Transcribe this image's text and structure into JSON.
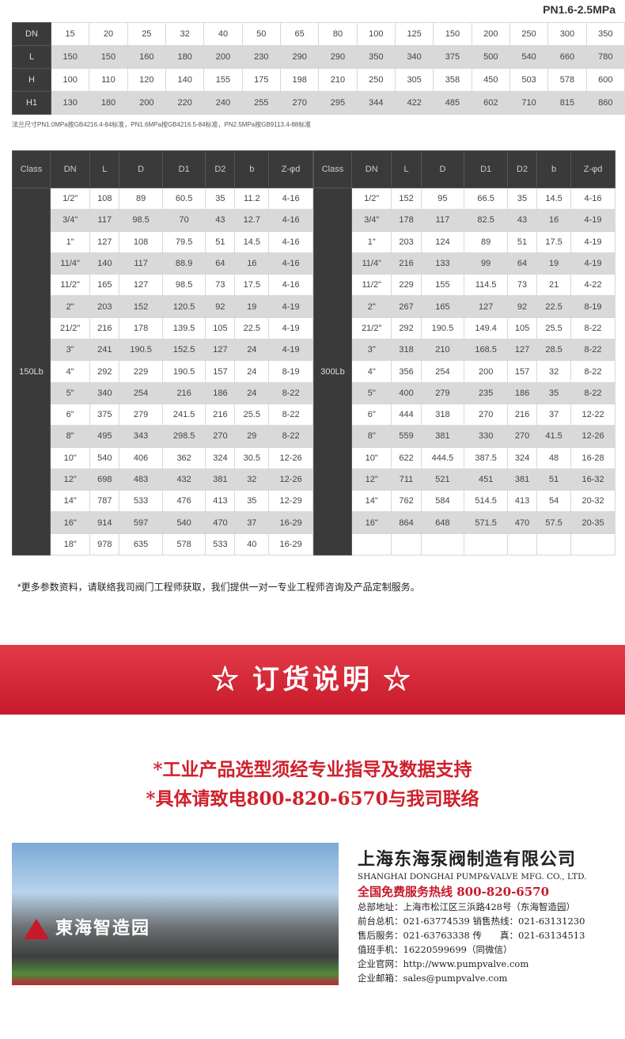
{
  "top": {
    "pressure": "PN1.6-2.5MPa",
    "rows": [
      {
        "label": "DN",
        "values": [
          "15",
          "20",
          "25",
          "32",
          "40",
          "50",
          "65",
          "80",
          "100",
          "125",
          "150",
          "200",
          "250",
          "300",
          "350"
        ]
      },
      {
        "label": "L",
        "values": [
          "150",
          "150",
          "160",
          "180",
          "200",
          "230",
          "290",
          "290",
          "350",
          "340",
          "375",
          "500",
          "540",
          "660",
          "780"
        ]
      },
      {
        "label": "H",
        "values": [
          "100",
          "110",
          "120",
          "140",
          "155",
          "175",
          "198",
          "210",
          "250",
          "305",
          "358",
          "450",
          "503",
          "578",
          "600"
        ]
      },
      {
        "label": "H1",
        "values": [
          "130",
          "180",
          "200",
          "220",
          "240",
          "255",
          "270",
          "295",
          "344",
          "422",
          "485",
          "602",
          "710",
          "815",
          "860"
        ]
      }
    ],
    "note": "法兰尺寸PN1.0MPa按GB4216.4-84标准，PN1.6MPa按GB4216.5-84标准，PN2.5MPa按GB9113.4-88标准"
  },
  "class_table": {
    "headers": [
      "Class",
      "DN",
      "L",
      "D",
      "D1",
      "D2",
      "b",
      "Z-φd"
    ],
    "left": {
      "class": "150Lb",
      "rows": [
        [
          "1/2\"",
          "108",
          "89",
          "60.5",
          "35",
          "11.2",
          "4-16"
        ],
        [
          "3/4\"",
          "117",
          "98.5",
          "70",
          "43",
          "12.7",
          "4-16"
        ],
        [
          "1\"",
          "127",
          "108",
          "79.5",
          "51",
          "14.5",
          "4-16"
        ],
        [
          "11/4\"",
          "140",
          "117",
          "88.9",
          "64",
          "16",
          "4-16"
        ],
        [
          "11/2\"",
          "165",
          "127",
          "98.5",
          "73",
          "17.5",
          "4-16"
        ],
        [
          "2\"",
          "203",
          "152",
          "120.5",
          "92",
          "19",
          "4-19"
        ],
        [
          "21/2\"",
          "216",
          "178",
          "139.5",
          "105",
          "22.5",
          "4-19"
        ],
        [
          "3\"",
          "241",
          "190.5",
          "152.5",
          "127",
          "24",
          "4-19"
        ],
        [
          "4\"",
          "292",
          "229",
          "190.5",
          "157",
          "24",
          "8-19"
        ],
        [
          "5\"",
          "340",
          "254",
          "216",
          "186",
          "24",
          "8-22"
        ],
        [
          "6\"",
          "375",
          "279",
          "241.5",
          "216",
          "25.5",
          "8-22"
        ],
        [
          "8\"",
          "495",
          "343",
          "298.5",
          "270",
          "29",
          "8-22"
        ],
        [
          "10\"",
          "540",
          "406",
          "362",
          "324",
          "30.5",
          "12-26"
        ],
        [
          "12\"",
          "698",
          "483",
          "432",
          "381",
          "32",
          "12-26"
        ],
        [
          "14\"",
          "787",
          "533",
          "476",
          "413",
          "35",
          "12-29"
        ],
        [
          "16\"",
          "914",
          "597",
          "540",
          "470",
          "37",
          "16-29"
        ],
        [
          "18\"",
          "978",
          "635",
          "578",
          "533",
          "40",
          "16-29"
        ]
      ]
    },
    "right": {
      "class": "300Lb",
      "rows": [
        [
          "1/2\"",
          "152",
          "95",
          "66.5",
          "35",
          "14.5",
          "4-16"
        ],
        [
          "3/4\"",
          "178",
          "117",
          "82.5",
          "43",
          "16",
          "4-19"
        ],
        [
          "1\"",
          "203",
          "124",
          "89",
          "51",
          "17.5",
          "4-19"
        ],
        [
          "11/4\"",
          "216",
          "133",
          "99",
          "64",
          "19",
          "4-19"
        ],
        [
          "11/2\"",
          "229",
          "155",
          "114.5",
          "73",
          "21",
          "4-22"
        ],
        [
          "2\"",
          "267",
          "165",
          "127",
          "92",
          "22.5",
          "8-19"
        ],
        [
          "21/2\"",
          "292",
          "190.5",
          "149.4",
          "105",
          "25.5",
          "8-22"
        ],
        [
          "3\"",
          "318",
          "210",
          "168.5",
          "127",
          "28.5",
          "8-22"
        ],
        [
          "4\"",
          "356",
          "254",
          "200",
          "157",
          "32",
          "8-22"
        ],
        [
          "5\"",
          "400",
          "279",
          "235",
          "186",
          "35",
          "8-22"
        ],
        [
          "6\"",
          "444",
          "318",
          "270",
          "216",
          "37",
          "12-22"
        ],
        [
          "8\"",
          "559",
          "381",
          "330",
          "270",
          "41.5",
          "12-26"
        ],
        [
          "10\"",
          "622",
          "444.5",
          "387.5",
          "324",
          "48",
          "16-28"
        ],
        [
          "12\"",
          "711",
          "521",
          "451",
          "381",
          "51",
          "16-32"
        ],
        [
          "14\"",
          "762",
          "584",
          "514.5",
          "413",
          "54",
          "20-32"
        ],
        [
          "16\"",
          "864",
          "648",
          "571.5",
          "470",
          "57.5",
          "20-35"
        ],
        [
          "",
          "",
          "",
          "",
          "",
          "",
          ""
        ]
      ]
    }
  },
  "footnote": "*更多参数资料，请联络我司阀门工程师获取，我们提供一对一专业工程师咨询及产品定制服务。",
  "banner": "☆ 订货说明 ☆",
  "notice": [
    "*工业产品选型须经专业指导及数据支持",
    "*具体请致电800-820-6570与我司联络"
  ],
  "photo": {
    "sign": "東海智造园"
  },
  "company": {
    "name": "上海东海泵阀制造有限公司",
    "name_en": "SHANGHAI DONGHAI PUMP&VALVE MFG. CO., LTD.",
    "hotline": "全国免费服务热线  800-820-6570",
    "lines": [
      "总部地址：上海市松江区三浜路428号（东海智造园）",
      "前台总机：021-63774539   销售热线：021-63131230",
      "售后服务：021-63763338   传　　真：021-63134513",
      "值班手机：16220599699（同微信）",
      "企业官网：http://www.pumpvalve.com",
      "企业邮箱：sales@pumpvalve.com"
    ]
  },
  "colors": {
    "accent": "#c8192a",
    "header": "#3a3a3a",
    "stripe": "#d9d9d9"
  }
}
